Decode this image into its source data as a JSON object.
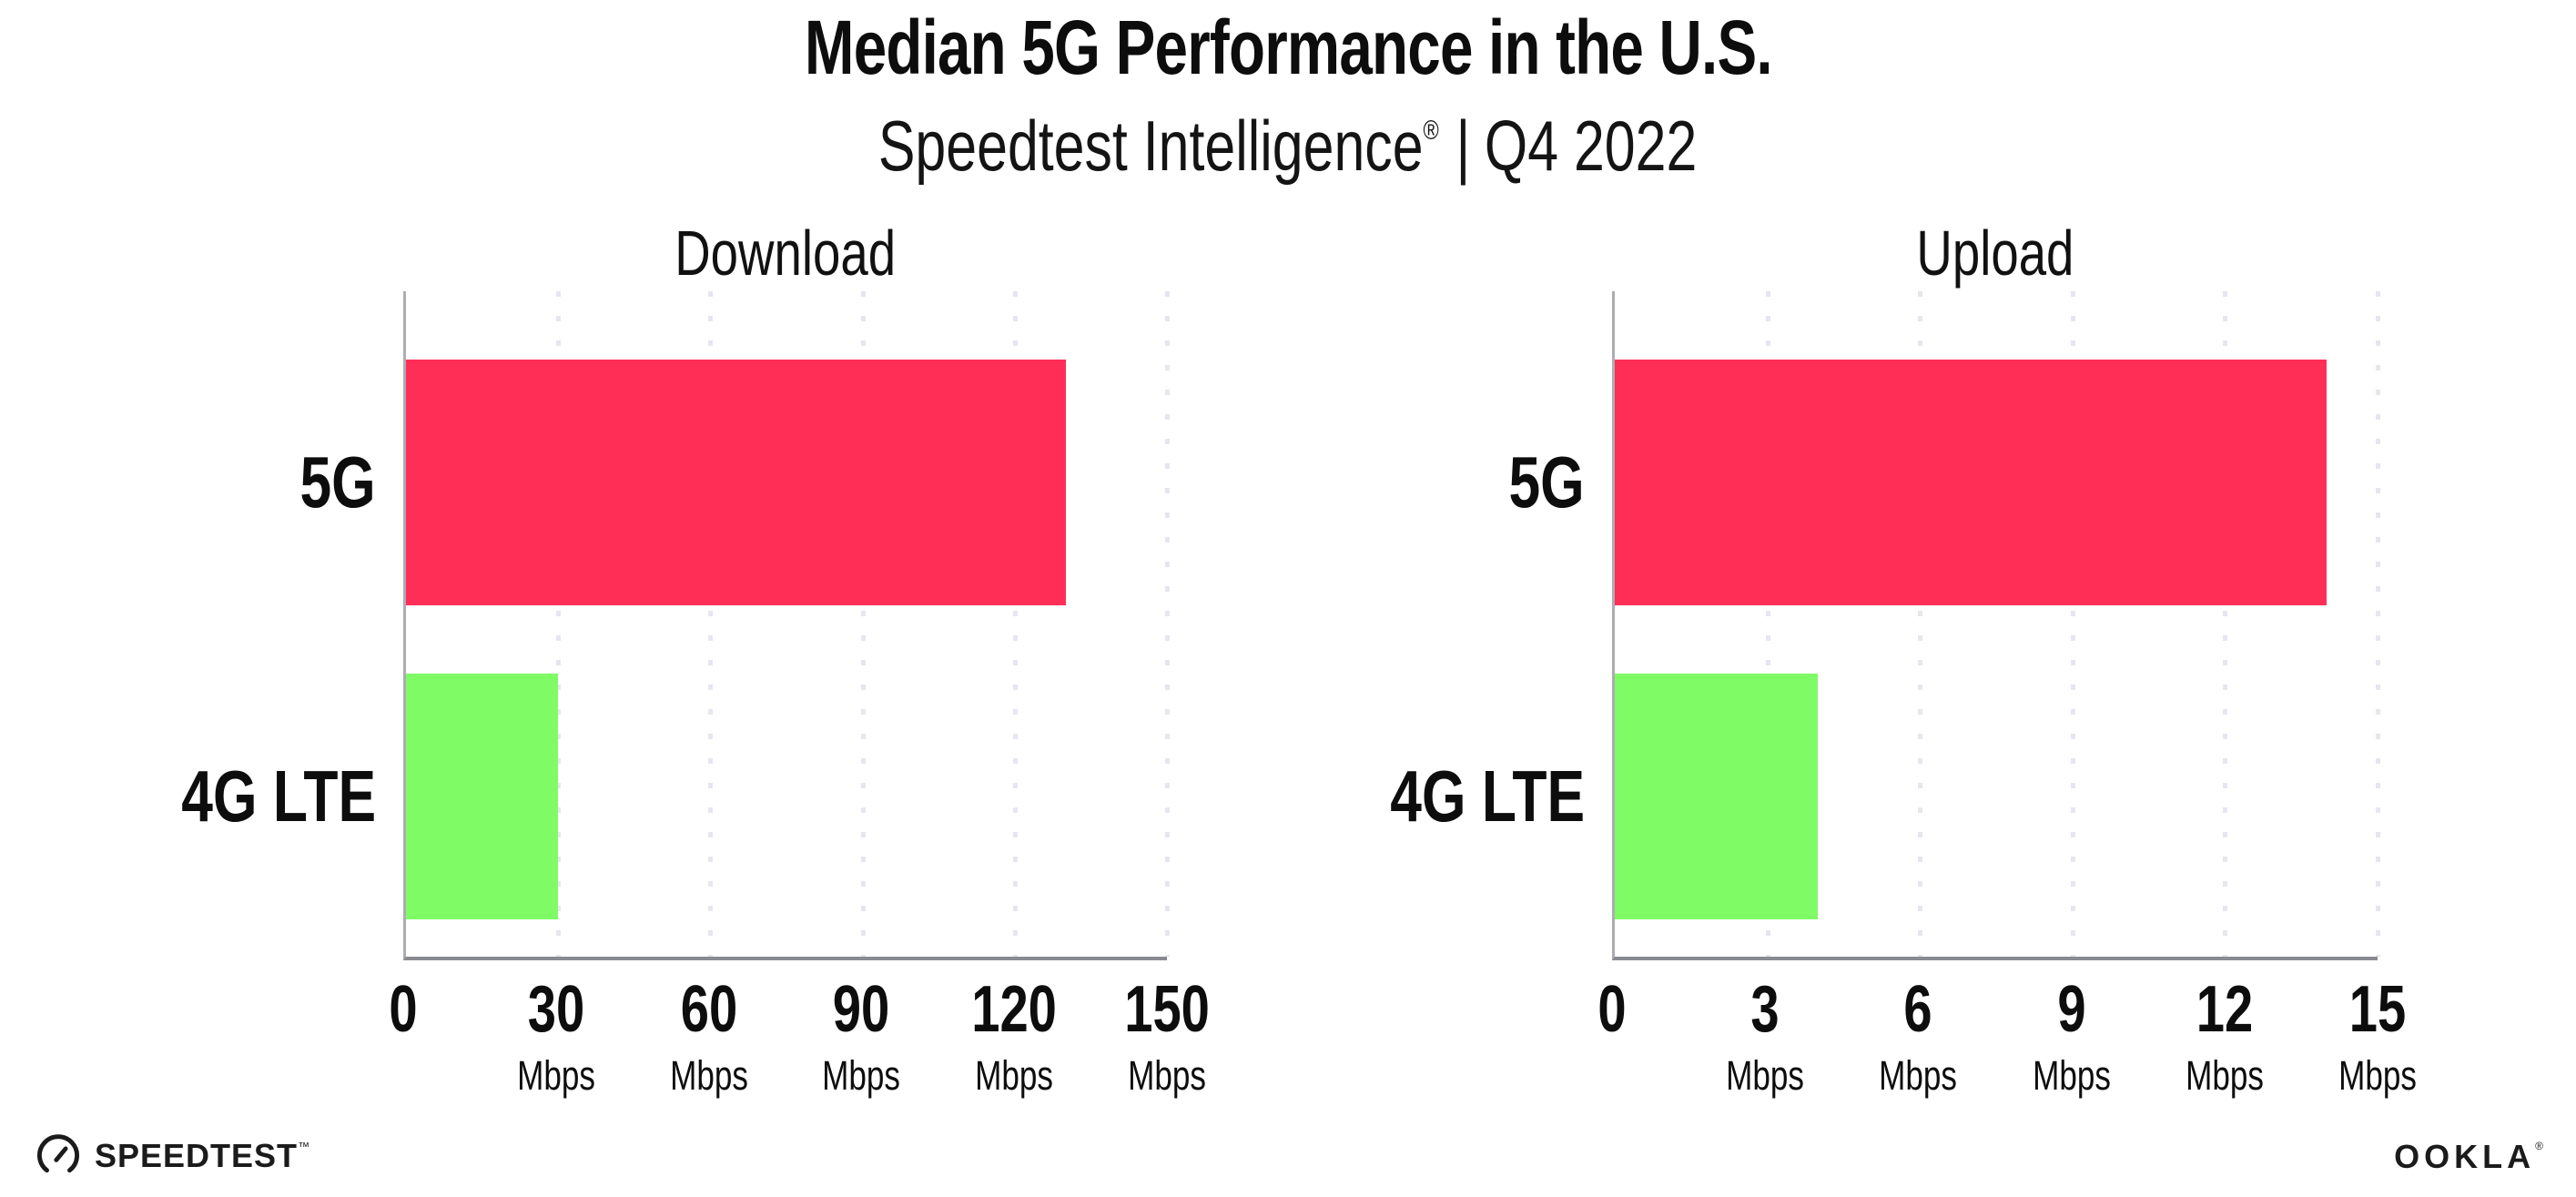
{
  "header": {
    "title": "Median 5G Performance in the U.S.",
    "subtitle_brand": "Speedtest Intelligence",
    "subtitle_reg": "®",
    "subtitle_sep": "|",
    "subtitle_period": "Q4 2022"
  },
  "colors": {
    "bar_5g": "#FF2E57",
    "bar_4g_lte": "#7FFB66",
    "axis": "#8A8A92",
    "gridline": "#E6E6F0",
    "text": "#0D0D0D"
  },
  "chart_data": [
    {
      "type": "bar",
      "orientation": "horizontal",
      "title": "Download",
      "categories": [
        "5G",
        "4G LTE"
      ],
      "values": [
        130,
        30
      ],
      "unit": "Mbps",
      "xlim": [
        0,
        150
      ],
      "ticks": [
        0,
        30,
        60,
        90,
        120,
        150
      ],
      "bar_colors": [
        "#FF2E57",
        "#7FFB66"
      ],
      "grid": "dotted-vertical",
      "legend": "none"
    },
    {
      "type": "bar",
      "orientation": "horizontal",
      "title": "Upload",
      "categories": [
        "5G",
        "4G LTE"
      ],
      "values": [
        14,
        4
      ],
      "unit": "Mbps",
      "xlim": [
        0,
        15
      ],
      "ticks": [
        0,
        3,
        6,
        9,
        12,
        15
      ],
      "bar_colors": [
        "#FF2E57",
        "#7FFB66"
      ],
      "grid": "dotted-vertical",
      "legend": "none"
    }
  ],
  "footer": {
    "speedtest_label": "SPEEDTEST",
    "speedtest_tm": "™",
    "ookla_label": "OOKLA",
    "ookla_reg": "®"
  }
}
